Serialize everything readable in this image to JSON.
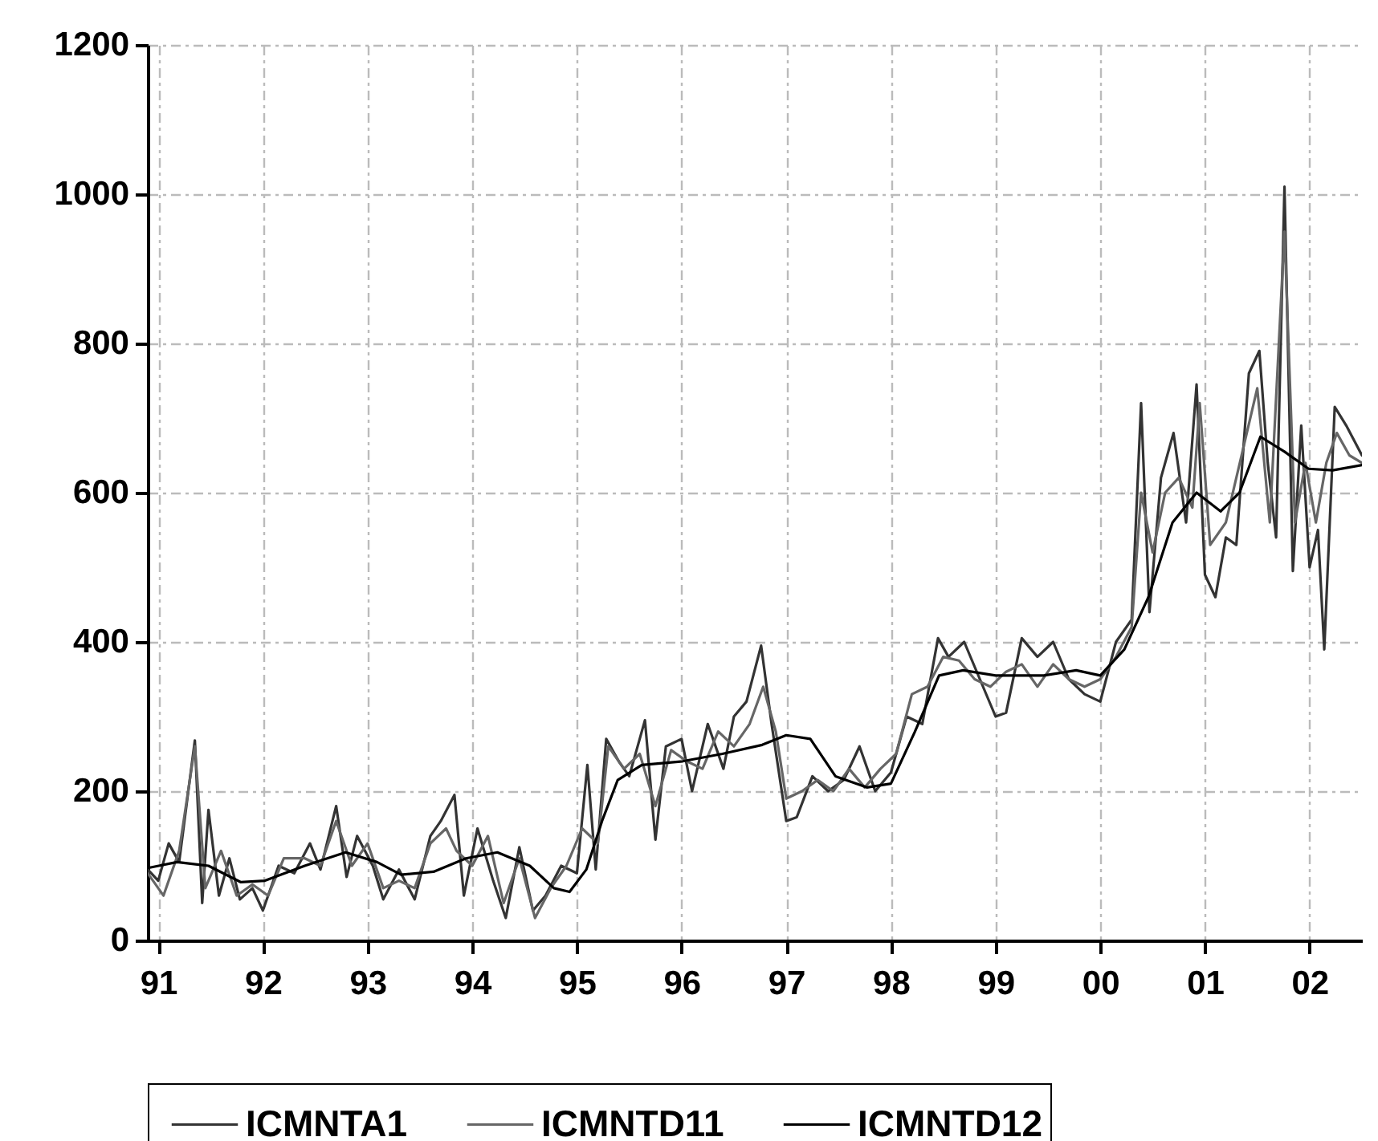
{
  "chart_data": {
    "type": "line",
    "xlim": [
      1990.9,
      2002.5
    ],
    "xticks": [
      {
        "value": 1991,
        "label": "91"
      },
      {
        "value": 1992,
        "label": "92"
      },
      {
        "value": 1993,
        "label": "93"
      },
      {
        "value": 1994,
        "label": "94"
      },
      {
        "value": 1995,
        "label": "95"
      },
      {
        "value": 1996,
        "label": "96"
      },
      {
        "value": 1997,
        "label": "97"
      },
      {
        "value": 1998,
        "label": "98"
      },
      {
        "value": 1999,
        "label": "99"
      },
      {
        "value": 2000,
        "label": "00"
      },
      {
        "value": 2001,
        "label": "01"
      },
      {
        "value": 2002,
        "label": "02"
      }
    ],
    "ylim": [
      0,
      1200
    ],
    "yticks": [
      0,
      200,
      400,
      600,
      800,
      1000,
      1200
    ],
    "grid": true,
    "legend": "bottom",
    "line_style": "solid",
    "marker": "none",
    "series": [
      {
        "name": "ICMNTA1",
        "color": "#333333",
        "x": [
          1990.9,
          1991.0,
          1991.1,
          1991.2,
          1991.35,
          1991.42,
          1991.48,
          1991.58,
          1991.68,
          1991.78,
          1991.9,
          1992.0,
          1992.15,
          1992.3,
          1992.45,
          1992.55,
          1992.7,
          1992.8,
          1992.9,
          1993.05,
          1993.15,
          1993.3,
          1993.45,
          1993.6,
          1993.7,
          1993.83,
          1993.92,
          1994.05,
          1994.2,
          1994.32,
          1994.45,
          1994.58,
          1994.7,
          1994.85,
          1995.0,
          1995.1,
          1995.18,
          1995.28,
          1995.4,
          1995.5,
          1995.65,
          1995.75,
          1995.85,
          1996.0,
          1996.1,
          1996.25,
          1996.4,
          1996.5,
          1996.62,
          1996.76,
          1996.86,
          1997.0,
          1997.1,
          1997.25,
          1997.4,
          1997.55,
          1997.7,
          1997.85,
          1998.0,
          1998.15,
          1998.3,
          1998.45,
          1998.55,
          1998.7,
          1998.85,
          1999.0,
          1999.1,
          1999.25,
          1999.4,
          1999.55,
          1999.7,
          1999.85,
          2000.0,
          2000.15,
          2000.3,
          2000.39,
          2000.47,
          2000.58,
          2000.7,
          2000.82,
          2000.92,
          2001.0,
          2001.1,
          2001.2,
          2001.3,
          2001.42,
          2001.52,
          2001.6,
          2001.68,
          2001.76,
          2001.84,
          2001.92,
          2002.0,
          2002.08,
          2002.14,
          2002.24,
          2002.35,
          2002.5
        ],
        "values": [
          95,
          80,
          130,
          105,
          268,
          50,
          175,
          60,
          110,
          55,
          70,
          40,
          100,
          90,
          130,
          95,
          180,
          85,
          140,
          100,
          55,
          95,
          55,
          140,
          160,
          195,
          60,
          150,
          80,
          30,
          125,
          40,
          60,
          100,
          90,
          235,
          95,
          270,
          240,
          220,
          295,
          135,
          260,
          270,
          200,
          290,
          230,
          300,
          320,
          395,
          290,
          160,
          165,
          220,
          200,
          215,
          260,
          200,
          225,
          300,
          290,
          405,
          380,
          400,
          350,
          300,
          305,
          405,
          380,
          400,
          350,
          330,
          320,
          400,
          430,
          720,
          440,
          620,
          680,
          560,
          745,
          490,
          460,
          540,
          530,
          760,
          790,
          640,
          540,
          1010,
          495,
          690,
          500,
          550,
          390,
          715,
          690,
          650
        ]
      },
      {
        "name": "ICMNTD11",
        "color": "#666666",
        "x": [
          1990.9,
          1991.05,
          1991.2,
          1991.35,
          1991.45,
          1991.6,
          1991.75,
          1991.9,
          1992.05,
          1992.2,
          1992.4,
          1992.55,
          1992.7,
          1992.85,
          1993.0,
          1993.15,
          1993.3,
          1993.45,
          1993.6,
          1993.75,
          1993.85,
          1994.0,
          1994.15,
          1994.3,
          1994.45,
          1994.6,
          1994.75,
          1994.9,
          1995.05,
          1995.2,
          1995.3,
          1995.45,
          1995.6,
          1995.75,
          1995.9,
          1996.05,
          1996.2,
          1996.35,
          1996.5,
          1996.65,
          1996.78,
          1996.9,
          1997.0,
          1997.15,
          1997.3,
          1997.45,
          1997.6,
          1997.75,
          1997.9,
          1998.05,
          1998.2,
          1998.35,
          1998.5,
          1998.65,
          1998.8,
          1998.95,
          1999.1,
          1999.25,
          1999.4,
          1999.55,
          1999.7,
          1999.85,
          2000.0,
          2000.15,
          2000.3,
          2000.39,
          2000.5,
          2000.62,
          2000.75,
          2000.88,
          2000.95,
          2001.05,
          2001.2,
          2001.35,
          2001.5,
          2001.62,
          2001.76,
          2001.86,
          2001.96,
          2002.06,
          2002.16,
          2002.26,
          2002.38,
          2002.5
        ],
        "values": [
          90,
          60,
          120,
          260,
          70,
          120,
          60,
          75,
          60,
          110,
          110,
          100,
          160,
          100,
          130,
          70,
          80,
          70,
          130,
          150,
          120,
          100,
          140,
          50,
          110,
          30,
          70,
          100,
          150,
          130,
          260,
          230,
          250,
          180,
          255,
          240,
          230,
          280,
          260,
          290,
          340,
          280,
          190,
          200,
          215,
          200,
          230,
          205,
          230,
          250,
          330,
          340,
          380,
          375,
          350,
          340,
          360,
          370,
          340,
          370,
          350,
          340,
          350,
          380,
          420,
          600,
          520,
          600,
          620,
          580,
          720,
          530,
          560,
          650,
          740,
          560,
          950,
          560,
          640,
          560,
          640,
          680,
          650,
          640
        ]
      },
      {
        "name": "ICMNTD12",
        "color": "#000000",
        "x": [
          1990.9,
          1991.18,
          1991.48,
          1991.79,
          1992.02,
          1992.4,
          1992.79,
          1993.09,
          1993.32,
          1993.63,
          1993.94,
          1994.24,
          1994.55,
          1994.78,
          1994.93,
          1995.09,
          1995.24,
          1995.39,
          1995.62,
          1996.01,
          1996.39,
          1996.77,
          1997.0,
          1997.23,
          1997.47,
          1997.77,
          1998.0,
          1998.23,
          1998.46,
          1998.69,
          1999.0,
          1999.46,
          1999.77,
          2000.0,
          2000.23,
          2000.46,
          2000.69,
          2000.92,
          2001.15,
          2001.33,
          2001.53,
          2001.76,
          2001.99,
          2002.22,
          2002.5
        ],
        "values": [
          97,
          105,
          100,
          78,
          80,
          100,
          118,
          105,
          88,
          92,
          110,
          118,
          100,
          70,
          65,
          95,
          160,
          215,
          235,
          240,
          250,
          262,
          275,
          270,
          220,
          205,
          210,
          280,
          355,
          362,
          355,
          355,
          362,
          355,
          390,
          460,
          560,
          600,
          575,
          600,
          675,
          655,
          632,
          630,
          637
        ]
      }
    ]
  }
}
